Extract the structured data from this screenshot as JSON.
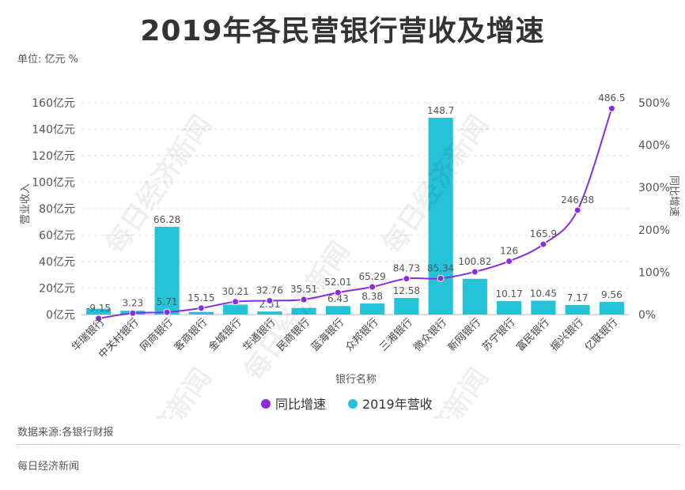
{
  "page": {
    "title": "2019年各民营银行营收及增速",
    "unit": "单位:  亿元 %",
    "source": "数据来源:各银行财报",
    "footer": "每日经济新闻",
    "watermark": "每日经济新闻"
  },
  "colors": {
    "bar": "#26c2d8",
    "line": "#8a2be2",
    "grid": "#e2e2e2",
    "text": "#555555"
  },
  "chart_data": {
    "type": "bar",
    "title": "2019年各民营银行营收及增速",
    "xlabel": "银行名称",
    "ylabel": "营业收入",
    "y2label": "同比增速",
    "categories": [
      "华瑞银行",
      "中关村银行",
      "网商银行",
      "客商银行",
      "金城银行",
      "华通银行",
      "民商银行",
      "蓝海银行",
      "众邦银行",
      "三湘银行",
      "微众银行",
      "新网银行",
      "苏宁银行",
      "富民银行",
      "振兴银行",
      "亿联银行"
    ],
    "ylim": [
      0,
      160
    ],
    "y_ticks": [
      0,
      20,
      40,
      60,
      80,
      100,
      120,
      140,
      160
    ],
    "y_tick_labels": [
      "0亿元",
      "20亿元",
      "40亿元",
      "60亿元",
      "80亿元",
      "100亿元",
      "120亿元",
      "140亿元",
      "160亿元"
    ],
    "y2lim": [
      0,
      500
    ],
    "y2_ticks": [
      0,
      100,
      200,
      300,
      400,
      500
    ],
    "y2_tick_labels": [
      "0%",
      "100%",
      "200%",
      "300%",
      "400%",
      "500%"
    ],
    "grid": true,
    "legend": "bottom-center",
    "series": [
      {
        "name": "2019年营收",
        "type": "bar",
        "axis": "left",
        "values": [
          4.4,
          2.9,
          66.28,
          2.0,
          7.5,
          2.31,
          5.0,
          6.43,
          8.38,
          12.58,
          148.7,
          27.0,
          10.17,
          10.45,
          7.17,
          9.56
        ],
        "labels": [
          "",
          "",
          "66.28",
          "",
          "",
          "2.31",
          "",
          "6.43",
          "8.38",
          "12.58",
          "148.7",
          "",
          "10.17",
          "10.45",
          "7.17",
          "9.56"
        ]
      },
      {
        "name": "同比增速",
        "type": "line",
        "axis": "right",
        "values": [
          -9.15,
          3.23,
          5.71,
          15.15,
          30.21,
          32.76,
          35.51,
          52.01,
          65.29,
          84.73,
          85.34,
          100.82,
          126,
          165.9,
          246.38,
          486.5
        ],
        "labels": [
          "-9.15",
          "3.23",
          "5.71",
          "15.15",
          "30.21",
          "32.76",
          "35.51",
          "52.01",
          "65.29",
          "84.73",
          "85.34",
          "100.82",
          "126",
          "165.9",
          "246.38",
          "486.5"
        ]
      }
    ]
  }
}
